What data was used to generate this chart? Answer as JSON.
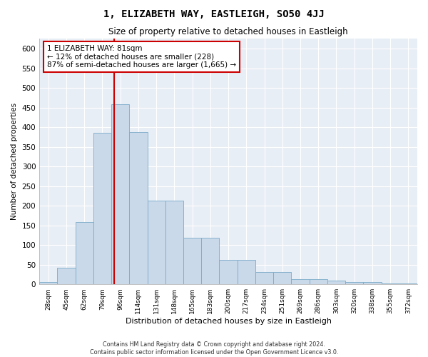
{
  "title": "1, ELIZABETH WAY, EASTLEIGH, SO50 4JJ",
  "subtitle": "Size of property relative to detached houses in Eastleigh",
  "xlabel": "Distribution of detached houses by size in Eastleigh",
  "ylabel": "Number of detached properties",
  "bar_color": "#c9d9ea",
  "bar_edge_color": "#7aaac8",
  "background_color": "#e8eef5",
  "grid_color": "#ffffff",
  "annotation_line_color": "#cc0000",
  "annotation_box_color": "#cc0000",
  "annotation_text": "1 ELIZABETH WAY: 81sqm\n← 12% of detached houses are smaller (228)\n87% of semi-detached houses are larger (1,665) →",
  "footer_line1": "Contains HM Land Registry data © Crown copyright and database right 2024.",
  "footer_line2": "Contains public sector information licensed under the Open Government Licence v3.0.",
  "bin_labels": [
    "28sqm",
    "45sqm",
    "62sqm",
    "79sqm",
    "96sqm",
    "114sqm",
    "131sqm",
    "148sqm",
    "165sqm",
    "183sqm",
    "200sqm",
    "217sqm",
    "234sqm",
    "251sqm",
    "269sqm",
    "286sqm",
    "303sqm",
    "320sqm",
    "338sqm",
    "355sqm",
    "372sqm"
  ],
  "bar_heights": [
    5,
    42,
    158,
    385,
    458,
    388,
    213,
    213,
    118,
    118,
    62,
    62,
    32,
    32,
    14,
    14,
    9,
    5,
    5,
    2,
    2
  ],
  "property_line_x": 3.65,
  "ylim": [
    0,
    625
  ],
  "yticks": [
    0,
    50,
    100,
    150,
    200,
    250,
    300,
    350,
    400,
    450,
    500,
    550,
    600
  ]
}
